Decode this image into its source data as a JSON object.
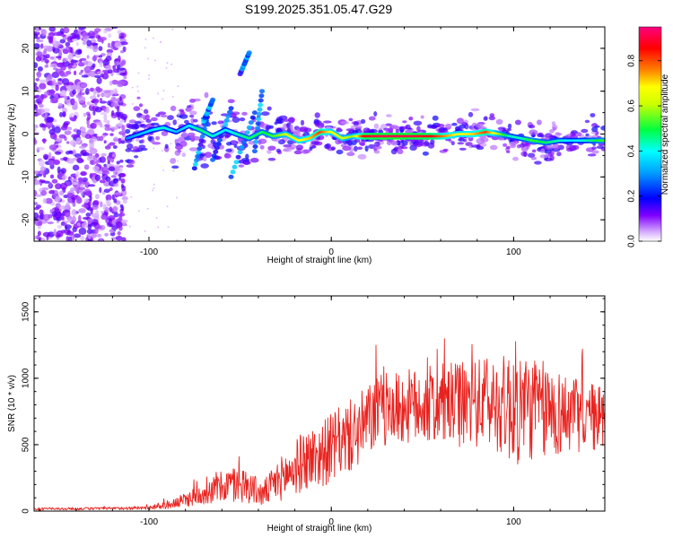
{
  "title": "S199.2025.351.05.47.G29",
  "chart_data": [
    {
      "type": "heatmap",
      "title": "S199.2025.351.05.47.G29",
      "xlabel": "Height of straight line (km)",
      "ylabel": "Frequency (Hz)",
      "xlim": [
        -163,
        150
      ],
      "ylim": [
        -25,
        25
      ],
      "xticks": [
        -100,
        0,
        100
      ],
      "yticks": [
        -20,
        -10,
        0,
        10,
        20
      ],
      "colorbar": {
        "label": "Normalized spectral amplitude",
        "range": [
          0,
          0.95
        ],
        "ticks": [
          0.0,
          0.2,
          0.4,
          0.6,
          0.8
        ],
        "tick_labels": [
          "0.0",
          "0.2",
          "0.4",
          "0.6",
          "0.8"
        ],
        "colormap": [
          "#ffffff",
          "#cc99ff",
          "#8000ff",
          "#0000ff",
          "#00ffff",
          "#00ff00",
          "#ffff00",
          "#ff8000",
          "#ff0000",
          "#ff0080"
        ]
      },
      "ridge": {
        "x": [
          -112,
          -105,
          -98,
          -92,
          -85,
          -78,
          -72,
          -65,
          -58,
          -52,
          -45,
          -38,
          -32,
          -25,
          -18,
          -12,
          -6,
          0,
          6,
          12,
          18,
          25,
          35,
          45,
          55,
          62,
          70,
          78,
          85,
          92,
          98,
          104,
          110,
          118,
          125,
          132,
          140,
          148
        ],
        "y": [
          -1,
          0,
          1,
          1.5,
          0.5,
          2,
          1,
          -0.5,
          1,
          0,
          -1,
          0.5,
          -0.5,
          0,
          -1.5,
          -1,
          0.5,
          0.5,
          -1,
          -0.5,
          -0.5,
          -0.5,
          -0.5,
          -0.5,
          -0.5,
          -0.5,
          0,
          0,
          0.5,
          0,
          -0.5,
          -1,
          -1.5,
          -2,
          -1.5,
          -1.5,
          -1.5,
          -1.5
        ],
        "amp": [
          0.3,
          0.35,
          0.4,
          0.45,
          0.35,
          0.4,
          0.5,
          0.45,
          0.4,
          0.45,
          0.5,
          0.5,
          0.55,
          0.65,
          0.7,
          0.75,
          0.85,
          0.7,
          0.65,
          0.6,
          0.9,
          0.95,
          0.95,
          0.95,
          0.9,
          0.8,
          0.7,
          0.75,
          0.85,
          0.6,
          0.45,
          0.45,
          0.55,
          0.5,
          0.45,
          0.4,
          0.45,
          0.55
        ]
      }
    },
    {
      "type": "line",
      "xlabel": "Height of straight line (km)",
      "ylabel": "SNR (10 * v/v)",
      "xlim": [
        -163,
        150
      ],
      "ylim": [
        0,
        1620
      ],
      "xticks": [
        -100,
        0,
        100
      ],
      "yticks": [
        0,
        500,
        1000,
        1500
      ],
      "color": "#e8231f",
      "envelope": {
        "x": [
          -163,
          -120,
          -100,
          -85,
          -75,
          -65,
          -55,
          -45,
          -38,
          -30,
          -22,
          -15,
          -5,
          5,
          15,
          25,
          40,
          55,
          70,
          85,
          95,
          100,
          105,
          115,
          125,
          135,
          150
        ],
        "mean": [
          15,
          20,
          25,
          60,
          110,
          160,
          200,
          190,
          120,
          220,
          300,
          380,
          430,
          520,
          600,
          750,
          780,
          800,
          800,
          820,
          800,
          800,
          790,
          760,
          740,
          720,
          700
        ],
        "amp": [
          10,
          10,
          15,
          40,
          70,
          100,
          140,
          130,
          90,
          150,
          200,
          230,
          250,
          270,
          280,
          280,
          280,
          300,
          320,
          340,
          380,
          500,
          420,
          380,
          330,
          280,
          250
        ]
      }
    }
  ]
}
